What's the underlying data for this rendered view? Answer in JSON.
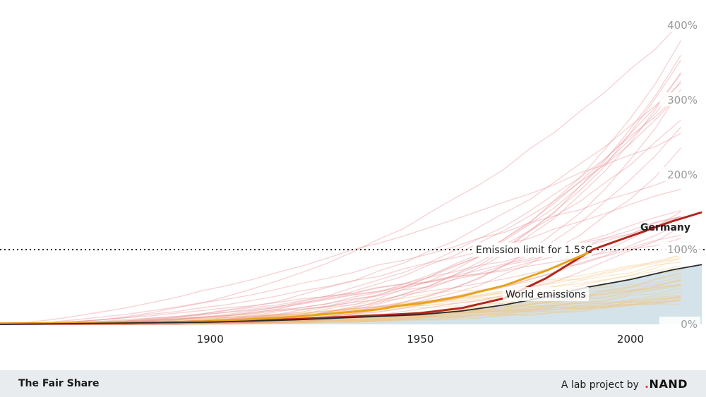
{
  "chart_data": {
    "type": "line",
    "title": "",
    "xlabel": "",
    "ylabel": "",
    "x_range": [
      1850,
      2017
    ],
    "y_range": [
      0,
      420
    ],
    "x_ticks": [
      {
        "value": 1900,
        "label": "1900"
      },
      {
        "value": 1950,
        "label": "1950"
      },
      {
        "value": 2000,
        "label": "2000"
      }
    ],
    "y_ticks": [
      {
        "value": 0,
        "label": "0%"
      },
      {
        "value": 100,
        "label": "100%"
      },
      {
        "value": 200,
        "label": "200%"
      },
      {
        "value": 300,
        "label": "300%"
      },
      {
        "value": 400,
        "label": "400%"
      }
    ],
    "reference_line": {
      "value": 100,
      "label": "Emission limit for 1.5°C",
      "style": "dotted"
    },
    "highlighted_series": [
      {
        "name": "Germany",
        "color": "#b5241c",
        "x": [
          1850,
          1880,
          1900,
          1920,
          1940,
          1950,
          1960,
          1970,
          1980,
          1991,
          2000,
          2010,
          2017
        ],
        "y": [
          1,
          2,
          4,
          7,
          12,
          15,
          22,
          35,
          62,
          100,
          118,
          138,
          150
        ]
      },
      {
        "name": "",
        "color": "#e8a317",
        "x": [
          1850,
          1880,
          1900,
          1920,
          1940,
          1945,
          1950,
          1960,
          1970,
          1980,
          1990
        ],
        "y": [
          1,
          2,
          4,
          10,
          20,
          25,
          28,
          38,
          52,
          72,
          96
        ]
      },
      {
        "name": "World emissions",
        "color": "#2b2b2b",
        "x": [
          1850,
          1900,
          1920,
          1950,
          1960,
          1970,
          1980,
          1990,
          2000,
          2010,
          2017
        ],
        "y": [
          0,
          3,
          6,
          13,
          18,
          26,
          37,
          50,
          60,
          73,
          80
        ]
      }
    ],
    "background_series": {
      "above_limit_color": "#e6848a",
      "below_limit_color": "#f4c27a",
      "world_area_color": "#c6d9e2",
      "count_above": 26,
      "count_below": 30
    },
    "annotations": {
      "germany": "Germany",
      "world": "World emissions"
    }
  },
  "footer": {
    "brand": "The Fair Share",
    "credit": "A lab project by",
    "logo_dot": ".",
    "logo_text": "NAND"
  },
  "colors": {
    "footer_bg": "#e9ecee",
    "logo_dot": "#e8413a"
  }
}
